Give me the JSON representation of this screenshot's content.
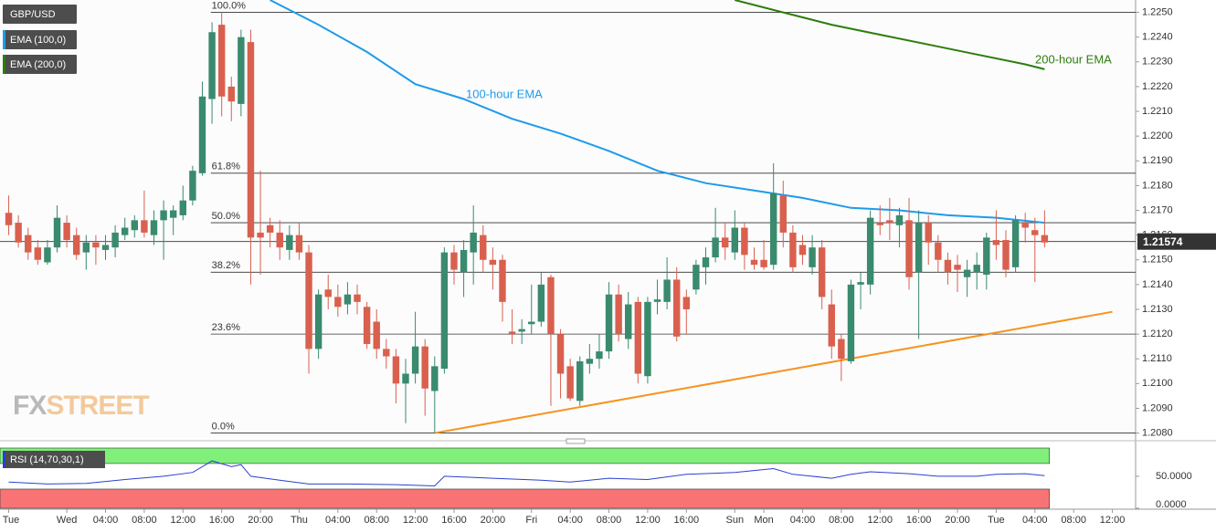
{
  "chart_data": {
    "type": "candlestick",
    "symbol": "GBP/USD",
    "up_color": "#3a8a6e",
    "down_color": "#d9604e",
    "xlim": [
      -0.9,
      116.4
    ],
    "ylim": [
      1.2078,
      1.2255
    ],
    "yticks": [
      {
        "value": 1.208,
        "label": "1.2080"
      },
      {
        "value": 1.209,
        "label": "1.2090"
      },
      {
        "value": 1.21,
        "label": "1.2100"
      },
      {
        "value": 1.211,
        "label": "1.2110"
      },
      {
        "value": 1.212,
        "label": "1.2120"
      },
      {
        "value": 1.213,
        "label": "1.2130"
      },
      {
        "value": 1.214,
        "label": "1.2140"
      },
      {
        "value": 1.215,
        "label": "1.2150"
      },
      {
        "value": 1.216,
        "label": "1.2160"
      },
      {
        "value": 1.217,
        "label": "1.2170"
      },
      {
        "value": 1.218,
        "label": "1.2180"
      },
      {
        "value": 1.219,
        "label": "1.2190"
      },
      {
        "value": 1.22,
        "label": "1.2200"
      },
      {
        "value": 1.221,
        "label": "1.2210"
      },
      {
        "value": 1.222,
        "label": "1.2220"
      },
      {
        "value": 1.223,
        "label": "1.2230"
      },
      {
        "value": 1.224,
        "label": "1.2240"
      },
      {
        "value": 1.225,
        "label": "1.2250"
      }
    ],
    "xticks": [
      {
        "value": 0,
        "label": "Tue"
      },
      {
        "value": 6,
        "label": "Wed"
      },
      {
        "value": 10,
        "label": "04:00"
      },
      {
        "value": 14,
        "label": "08:00"
      },
      {
        "value": 18,
        "label": "12:00"
      },
      {
        "value": 22,
        "label": "16:00"
      },
      {
        "value": 26,
        "label": "20:00"
      },
      {
        "value": 30,
        "label": "Thu"
      },
      {
        "value": 34,
        "label": "04:00"
      },
      {
        "value": 38,
        "label": "08:00"
      },
      {
        "value": 42,
        "label": "12:00"
      },
      {
        "value": 46,
        "label": "16:00"
      },
      {
        "value": 50,
        "label": "20:00"
      },
      {
        "value": 54,
        "label": "Fri"
      },
      {
        "value": 58,
        "label": "04:00"
      },
      {
        "value": 62,
        "label": "08:00"
      },
      {
        "value": 66,
        "label": "12:00"
      },
      {
        "value": 70,
        "label": "16:00"
      },
      {
        "value": 75,
        "label": "Sun"
      },
      {
        "value": 78,
        "label": "Mon"
      },
      {
        "value": 82,
        "label": "04:00"
      },
      {
        "value": 86,
        "label": "08:00"
      },
      {
        "value": 90,
        "label": "12:00"
      },
      {
        "value": 94,
        "label": "16:00"
      },
      {
        "value": 98,
        "label": "20:00"
      },
      {
        "value": 102,
        "label": "Tue"
      },
      {
        "value": 106,
        "label": "04:00"
      },
      {
        "value": 110,
        "label": "08:00"
      },
      {
        "value": 114,
        "label": "12:00"
      }
    ],
    "last_price": 1.21574,
    "candles": [
      {
        "open": 1.2169,
        "high": 1.2176,
        "low": 1.216,
        "close": 1.2164
      },
      {
        "open": 1.2165,
        "high": 1.2168,
        "low": 1.2155,
        "close": 1.2157
      },
      {
        "open": 1.216,
        "high": 1.2163,
        "low": 1.215,
        "close": 1.2153
      },
      {
        "open": 1.2155,
        "high": 1.2158,
        "low": 1.2148,
        "close": 1.215
      },
      {
        "open": 1.2149,
        "high": 1.2158,
        "low": 1.2148,
        "close": 1.2155
      },
      {
        "open": 1.2155,
        "high": 1.2172,
        "low": 1.2153,
        "close": 1.2167
      },
      {
        "open": 1.2165,
        "high": 1.2168,
        "low": 1.2155,
        "close": 1.2158
      },
      {
        "open": 1.216,
        "high": 1.2163,
        "low": 1.215,
        "close": 1.2152
      },
      {
        "open": 1.2153,
        "high": 1.216,
        "low": 1.2146,
        "close": 1.2157
      },
      {
        "open": 1.2157,
        "high": 1.216,
        "low": 1.2148,
        "close": 1.2155
      },
      {
        "open": 1.2154,
        "high": 1.216,
        "low": 1.215,
        "close": 1.2156
      },
      {
        "open": 1.2155,
        "high": 1.2164,
        "low": 1.2151,
        "close": 1.2161
      },
      {
        "open": 1.216,
        "high": 1.2167,
        "low": 1.2158,
        "close": 1.2163
      },
      {
        "open": 1.2162,
        "high": 1.2168,
        "low": 1.2159,
        "close": 1.2166
      },
      {
        "open": 1.2166,
        "high": 1.2178,
        "low": 1.2159,
        "close": 1.2161
      },
      {
        "open": 1.216,
        "high": 1.217,
        "low": 1.2156,
        "close": 1.2166
      },
      {
        "open": 1.2166,
        "high": 1.2174,
        "low": 1.215,
        "close": 1.217
      },
      {
        "open": 1.2167,
        "high": 1.2172,
        "low": 1.216,
        "close": 1.217
      },
      {
        "open": 1.2168,
        "high": 1.218,
        "low": 1.2166,
        "close": 1.2174
      },
      {
        "open": 1.2174,
        "high": 1.2188,
        "low": 1.2172,
        "close": 1.2186
      },
      {
        "open": 1.2185,
        "high": 1.2222,
        "low": 1.2184,
        "close": 1.2216
      },
      {
        "open": 1.2215,
        "high": 1.2246,
        "low": 1.2205,
        "close": 1.2242
      },
      {
        "open": 1.2245,
        "high": 1.225,
        "low": 1.2208,
        "close": 1.2216
      },
      {
        "open": 1.222,
        "high": 1.2224,
        "low": 1.2206,
        "close": 1.2214
      },
      {
        "open": 1.2213,
        "high": 1.2243,
        "low": 1.2208,
        "close": 1.224
      },
      {
        "open": 1.2238,
        "high": 1.2243,
        "low": 1.214,
        "close": 1.2159
      },
      {
        "open": 1.2161,
        "high": 1.2186,
        "low": 1.2144,
        "close": 1.2159
      },
      {
        "open": 1.2164,
        "high": 1.2167,
        "low": 1.2155,
        "close": 1.2161
      },
      {
        "open": 1.2161,
        "high": 1.2166,
        "low": 1.215,
        "close": 1.2155
      },
      {
        "open": 1.2154,
        "high": 1.2164,
        "low": 1.215,
        "close": 1.216
      },
      {
        "open": 1.216,
        "high": 1.2165,
        "low": 1.215,
        "close": 1.2153
      },
      {
        "open": 1.2153,
        "high": 1.2156,
        "low": 1.2104,
        "close": 1.2114
      },
      {
        "open": 1.2114,
        "high": 1.2138,
        "low": 1.211,
        "close": 1.2136
      },
      {
        "open": 1.2138,
        "high": 1.2144,
        "low": 1.213,
        "close": 1.2135
      },
      {
        "open": 1.2135,
        "high": 1.214,
        "low": 1.2127,
        "close": 1.2131
      },
      {
        "open": 1.2132,
        "high": 1.2141,
        "low": 1.2128,
        "close": 1.2136
      },
      {
        "open": 1.2136,
        "high": 1.214,
        "low": 1.2128,
        "close": 1.2133
      },
      {
        "open": 1.2131,
        "high": 1.2133,
        "low": 1.2114,
        "close": 1.2116
      },
      {
        "open": 1.2125,
        "high": 1.213,
        "low": 1.211,
        "close": 1.2114
      },
      {
        "open": 1.2114,
        "high": 1.2118,
        "low": 1.2106,
        "close": 1.2111
      },
      {
        "open": 1.2111,
        "high": 1.2114,
        "low": 1.2092,
        "close": 1.21
      },
      {
        "open": 1.21,
        "high": 1.211,
        "low": 1.2084,
        "close": 1.2104
      },
      {
        "open": 1.2104,
        "high": 1.2129,
        "low": 1.21,
        "close": 1.2115
      },
      {
        "open": 1.2115,
        "high": 1.2118,
        "low": 1.2087,
        "close": 1.2098
      },
      {
        "open": 1.2097,
        "high": 1.2111,
        "low": 1.208,
        "close": 1.2107
      },
      {
        "open": 1.2106,
        "high": 1.2155,
        "low": 1.2104,
        "close": 1.2153
      },
      {
        "open": 1.2153,
        "high": 1.2156,
        "low": 1.214,
        "close": 1.2146
      },
      {
        "open": 1.2145,
        "high": 1.2158,
        "low": 1.2135,
        "close": 1.2154
      },
      {
        "open": 1.2153,
        "high": 1.2172,
        "low": 1.214,
        "close": 1.2161
      },
      {
        "open": 1.216,
        "high": 1.2164,
        "low": 1.2145,
        "close": 1.215
      },
      {
        "open": 1.215,
        "high": 1.2155,
        "low": 1.2138,
        "close": 1.2148
      },
      {
        "open": 1.215,
        "high": 1.2152,
        "low": 1.2125,
        "close": 1.2133
      },
      {
        "open": 1.2121,
        "high": 1.213,
        "low": 1.2116,
        "close": 1.212
      },
      {
        "open": 1.2121,
        "high": 1.2126,
        "low": 1.2116,
        "close": 1.2122
      },
      {
        "open": 1.2124,
        "high": 1.214,
        "low": 1.212,
        "close": 1.2125
      },
      {
        "open": 1.2125,
        "high": 1.2145,
        "low": 1.2123,
        "close": 1.214
      },
      {
        "open": 1.2143,
        "high": 1.2144,
        "low": 1.2091,
        "close": 1.212
      },
      {
        "open": 1.212,
        "high": 1.2122,
        "low": 1.2094,
        "close": 1.2104
      },
      {
        "open": 1.2107,
        "high": 1.211,
        "low": 1.2093,
        "close": 1.2094
      },
      {
        "open": 1.2093,
        "high": 1.2111,
        "low": 1.2091,
        "close": 1.2109
      },
      {
        "open": 1.2108,
        "high": 1.2116,
        "low": 1.2104,
        "close": 1.211
      },
      {
        "open": 1.211,
        "high": 1.212,
        "low": 1.2106,
        "close": 1.2113
      },
      {
        "open": 1.2113,
        "high": 1.2141,
        "low": 1.211,
        "close": 1.2136
      },
      {
        "open": 1.2136,
        "high": 1.214,
        "low": 1.2117,
        "close": 1.212
      },
      {
        "open": 1.2118,
        "high": 1.2137,
        "low": 1.2114,
        "close": 1.2132
      },
      {
        "open": 1.2133,
        "high": 1.2135,
        "low": 1.21,
        "close": 1.2104
      },
      {
        "open": 1.2103,
        "high": 1.2135,
        "low": 1.21,
        "close": 1.2133
      },
      {
        "open": 1.2133,
        "high": 1.2142,
        "low": 1.2128,
        "close": 1.2134
      },
      {
        "open": 1.2133,
        "high": 1.2151,
        "low": 1.213,
        "close": 1.2142
      },
      {
        "open": 1.2142,
        "high": 1.2147,
        "low": 1.2117,
        "close": 1.2119
      },
      {
        "open": 1.2135,
        "high": 1.2138,
        "low": 1.212,
        "close": 1.213
      },
      {
        "open": 1.2138,
        "high": 1.215,
        "low": 1.2136,
        "close": 1.2148
      },
      {
        "open": 1.2147,
        "high": 1.2155,
        "low": 1.214,
        "close": 1.2151
      },
      {
        "open": 1.2151,
        "high": 1.2171,
        "low": 1.2149,
        "close": 1.2159
      },
      {
        "open": 1.2159,
        "high": 1.2165,
        "low": 1.215,
        "close": 1.2155
      },
      {
        "open": 1.2153,
        "high": 1.217,
        "low": 1.215,
        "close": 1.2163
      },
      {
        "open": 1.2163,
        "high": 1.2165,
        "low": 1.2146,
        "close": 1.2152
      },
      {
        "open": 1.215,
        "high": 1.2155,
        "low": 1.2146,
        "close": 1.2148
      },
      {
        "open": 1.215,
        "high": 1.2158,
        "low": 1.2146,
        "close": 1.2147
      },
      {
        "open": 1.2148,
        "high": 1.2189,
        "low": 1.2146,
        "close": 1.2177
      },
      {
        "open": 1.2176,
        "high": 1.2182,
        "low": 1.2155,
        "close": 1.2161
      },
      {
        "open": 1.2161,
        "high": 1.2164,
        "low": 1.2145,
        "close": 1.2147
      },
      {
        "open": 1.2156,
        "high": 1.216,
        "low": 1.2148,
        "close": 1.2152
      },
      {
        "open": 1.2147,
        "high": 1.216,
        "low": 1.2144,
        "close": 1.2155
      },
      {
        "open": 1.2155,
        "high": 1.2158,
        "low": 1.213,
        "close": 1.2135
      },
      {
        "open": 1.2132,
        "high": 1.2138,
        "low": 1.211,
        "close": 1.2115
      },
      {
        "open": 1.2118,
        "high": 1.212,
        "low": 1.2101,
        "close": 1.211
      },
      {
        "open": 1.2109,
        "high": 1.2142,
        "low": 1.2108,
        "close": 1.214
      },
      {
        "open": 1.214,
        "high": 1.2145,
        "low": 1.213,
        "close": 1.2141
      },
      {
        "open": 1.214,
        "high": 1.217,
        "low": 1.2136,
        "close": 1.2167
      },
      {
        "open": 1.2165,
        "high": 1.2172,
        "low": 1.216,
        "close": 1.2164
      },
      {
        "open": 1.2166,
        "high": 1.2175,
        "low": 1.2158,
        "close": 1.2165
      },
      {
        "open": 1.2164,
        "high": 1.2171,
        "low": 1.2155,
        "close": 1.2168
      },
      {
        "open": 1.2166,
        "high": 1.2175,
        "low": 1.2138,
        "close": 1.2143
      },
      {
        "open": 1.2145,
        "high": 1.217,
        "low": 1.2118,
        "close": 1.2165
      },
      {
        "open": 1.2165,
        "high": 1.2168,
        "low": 1.2148,
        "close": 1.2157
      },
      {
        "open": 1.2157,
        "high": 1.216,
        "low": 1.2145,
        "close": 1.215
      },
      {
        "open": 1.215,
        "high": 1.2153,
        "low": 1.214,
        "close": 1.2145
      },
      {
        "open": 1.2148,
        "high": 1.2152,
        "low": 1.2137,
        "close": 1.2146
      },
      {
        "open": 1.2143,
        "high": 1.215,
        "low": 1.2135,
        "close": 1.2146
      },
      {
        "open": 1.2145,
        "high": 1.2153,
        "low": 1.2138,
        "close": 1.2148
      },
      {
        "open": 1.2144,
        "high": 1.2161,
        "low": 1.2138,
        "close": 1.2159
      },
      {
        "open": 1.2158,
        "high": 1.217,
        "low": 1.215,
        "close": 1.2156
      },
      {
        "open": 1.2158,
        "high": 1.2162,
        "low": 1.2143,
        "close": 1.2146
      },
      {
        "open": 1.2147,
        "high": 1.2168,
        "low": 1.2145,
        "close": 1.2166
      },
      {
        "open": 1.2165,
        "high": 1.2169,
        "low": 1.2157,
        "close": 1.2163
      },
      {
        "open": 1.2162,
        "high": 1.2167,
        "low": 1.2141,
        "close": 1.216
      },
      {
        "open": 1.216,
        "high": 1.217,
        "low": 1.2155,
        "close": 1.2157
      }
    ],
    "series": [
      {
        "name": "EMA (100,0)",
        "label": "100-hour EMA",
        "color": "#1e9be9",
        "x": [
          27,
          32,
          37,
          42,
          47,
          52,
          57,
          62,
          67,
          72,
          77,
          82,
          87,
          92,
          97,
          102,
          107
        ],
        "values": [
          1.2255,
          1.2245,
          1.2234,
          1.2221,
          1.2215,
          1.2207,
          1.2201,
          1.2194,
          1.2186,
          1.2181,
          1.2178,
          1.2175,
          1.2171,
          1.217,
          1.2168,
          1.2167,
          1.2165
        ]
      },
      {
        "name": "EMA (200,0)",
        "label": "200-hour EMA",
        "color": "#2d7d0e",
        "x": [
          75,
          80,
          85,
          90,
          95,
          100,
          105,
          107
        ],
        "values": [
          1.2255,
          1.225,
          1.2245,
          1.2241,
          1.2237,
          1.2233,
          1.2229,
          1.2227
        ]
      }
    ],
    "fibonacci": [
      {
        "label": "100.0%",
        "value": 1.225
      },
      {
        "label": "61.8%",
        "value": 1.2185
      },
      {
        "label": "50.0%",
        "value": 1.2165
      },
      {
        "label": "38.2%",
        "value": 1.2145
      },
      {
        "label": "23.6%",
        "value": 1.212
      },
      {
        "label": "0.0%",
        "value": 1.208
      }
    ],
    "trendline": {
      "color": "#f7931e",
      "x": [
        44,
        114
      ],
      "values": [
        1.208,
        1.2129
      ]
    },
    "watermark": [
      "FX",
      "STREET"
    ],
    "rsi": {
      "label": "RSI (14,70,30,1)",
      "color": "#2a3fd0",
      "upper": 70,
      "lower": 30,
      "ylim": [
        0,
        97
      ],
      "yticks": [
        {
          "value": 50,
          "label": "50.0000"
        },
        {
          "value": 0,
          "label": "0.0000"
        }
      ],
      "x": [
        0,
        4,
        8,
        12,
        16,
        19,
        21,
        23,
        24,
        25,
        28,
        31,
        35,
        40,
        44,
        45,
        50,
        55,
        58,
        62,
        66,
        70,
        75,
        79,
        81,
        85,
        87,
        89,
        93,
        96,
        100,
        102,
        105,
        107
      ],
      "values": [
        41,
        38,
        39,
        45,
        50,
        56,
        74,
        65,
        68,
        50,
        44,
        38,
        38,
        37,
        35,
        50,
        47,
        44,
        41,
        47,
        45,
        53,
        56,
        62,
        53,
        47,
        53,
        57,
        54,
        50,
        50,
        53,
        54,
        51
      ]
    }
  }
}
